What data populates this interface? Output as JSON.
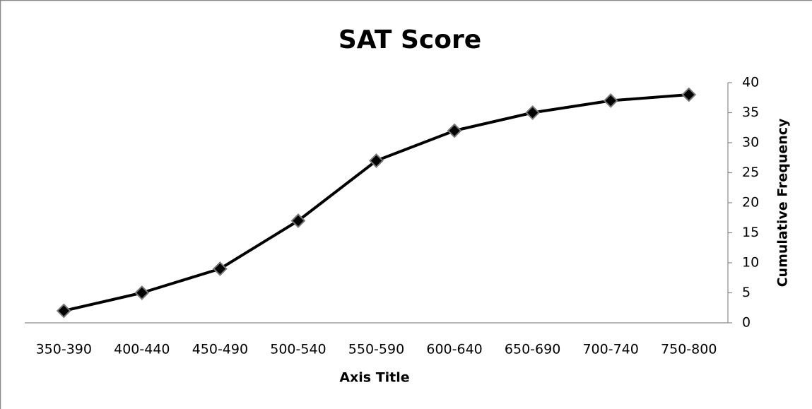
{
  "chart_data": {
    "type": "line",
    "title": "SAT Score",
    "x_label": "Axis Title",
    "y_label": "Cumulative Frequency",
    "categories": [
      "350-390",
      "400-440",
      "450-490",
      "500-540",
      "550-590",
      "600-640",
      "650-690",
      "700-740",
      "750-800"
    ],
    "values": [
      2,
      5,
      9,
      17,
      27,
      32,
      35,
      37,
      38
    ],
    "color": "#000000",
    "ylim": [
      0,
      40
    ],
    "yticks": [
      0,
      5,
      10,
      15,
      20,
      25,
      30,
      35,
      40
    ],
    "y_axis_side": "right",
    "grid": false
  }
}
